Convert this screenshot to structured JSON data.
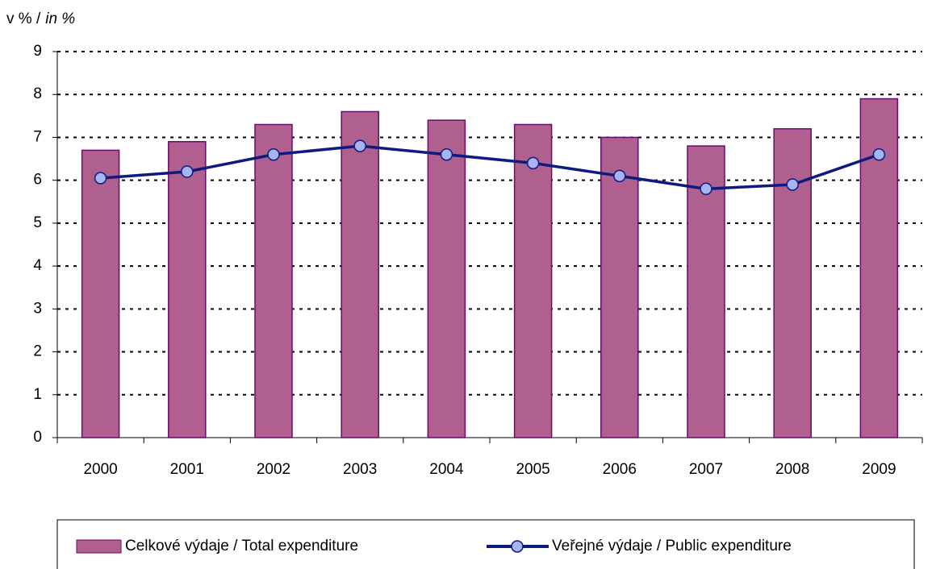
{
  "chart_data": {
    "type": "bar_line",
    "ylabel": "v %  /",
    "ylabel_en": "in %",
    "categories": [
      "2000",
      "2001",
      "2002",
      "2003",
      "2004",
      "2005",
      "2006",
      "2007",
      "2008",
      "2009"
    ],
    "series": [
      {
        "name": "Celkové výdaje / Total expenditure",
        "type": "bar",
        "color": "#b0608e",
        "values": [
          6.7,
          6.9,
          7.3,
          7.6,
          7.4,
          7.3,
          7.0,
          6.8,
          7.2,
          7.9
        ]
      },
      {
        "name": "Veřejné výdaje / Public expenditure",
        "type": "line",
        "color": "#0d1a80",
        "values": [
          6.05,
          6.2,
          6.6,
          6.8,
          6.6,
          6.4,
          6.1,
          5.8,
          5.9,
          6.6
        ]
      }
    ],
    "ylim": [
      0,
      9
    ],
    "yticks": [
      0,
      1,
      2,
      3,
      4,
      5,
      6,
      7,
      8,
      9
    ],
    "grid": true,
    "legend": "bottom"
  }
}
